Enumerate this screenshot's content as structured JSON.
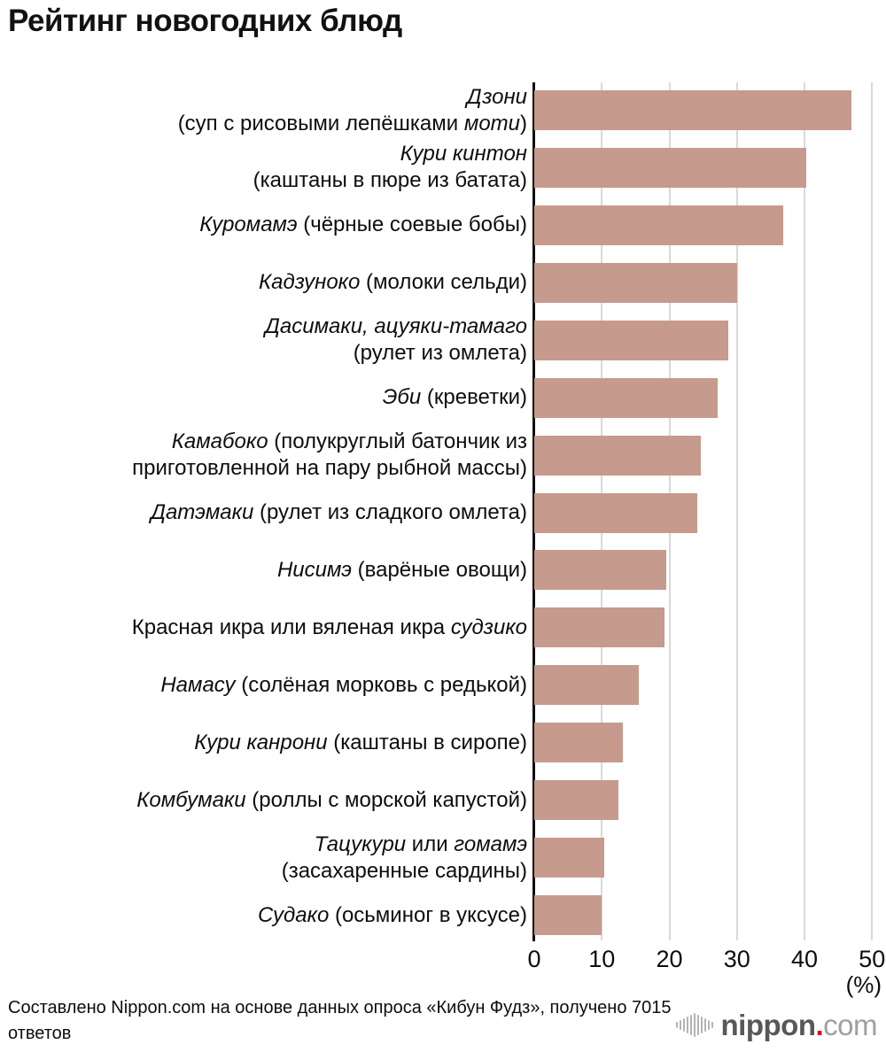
{
  "title": "Рейтинг новогодних блюд",
  "chart_data": {
    "type": "bar",
    "orientation": "horizontal",
    "title": "Рейтинг новогодних блюд",
    "xlabel": "(%)",
    "xlim": [
      0,
      50
    ],
    "x_ticks": [
      0,
      10,
      20,
      30,
      40,
      50
    ],
    "grid": true,
    "bar_color": "#c69a8d",
    "grid_color": "#d9d9d9",
    "categories": [
      "Дзони (суп с рисовыми лепёшками моти)",
      "Кури кинтон (каштаны в пюре из батата)",
      "Куромамэ (чёрные соевые бобы)",
      "Кадзуноко (молоки сельди)",
      "Дасимаки, ацуяки-тамаго (рулет из омлета)",
      "Эби (креветки)",
      "Камабоко (полукруглый батончик из приготовленной на пару рыбной массы)",
      "Датэмаки (рулет из сладкого омлета)",
      "Нисимэ (варёные овощи)",
      "Красная икра или вяленая икра судзико",
      "Намасу (солёная морковь с редькой)",
      "Кури канрони (каштаны в сиропе)",
      "Комбумаки (роллы с морской капустой)",
      "Тацукури или гомамэ (засахаренные сардины)",
      "Судако (осьминог в уксусе)"
    ],
    "values": [
      47,
      40.2,
      36.9,
      30,
      28.7,
      27.2,
      24.6,
      24.1,
      19.6,
      19.3,
      15.5,
      13.1,
      12.4,
      10.3,
      10
    ],
    "items": [
      {
        "value": 47,
        "label_lines": [
          [
            {
              "t": "Дзони",
              "i": true
            }
          ],
          [
            {
              "t": "(суп с рисовыми лепёшками ",
              "i": false
            },
            {
              "t": "моти",
              "i": true
            },
            {
              "t": ")",
              "i": false
            }
          ]
        ]
      },
      {
        "value": 40.2,
        "label_lines": [
          [
            {
              "t": "Кури кинтон",
              "i": true
            }
          ],
          [
            {
              "t": "(каштаны в пюре из батата)",
              "i": false
            }
          ]
        ]
      },
      {
        "value": 36.9,
        "label_lines": [
          [
            {
              "t": "Куромамэ",
              "i": true
            },
            {
              "t": " (чёрные соевые бобы)",
              "i": false
            }
          ]
        ]
      },
      {
        "value": 30,
        "label_lines": [
          [
            {
              "t": "Кадзуноко",
              "i": true
            },
            {
              "t": " (молоки сельди)",
              "i": false
            }
          ]
        ]
      },
      {
        "value": 28.7,
        "label_lines": [
          [
            {
              "t": "Дасимаки, ацуяки-тамаго",
              "i": true
            }
          ],
          [
            {
              "t": "(рулет из омлета)",
              "i": false
            }
          ]
        ]
      },
      {
        "value": 27.2,
        "label_lines": [
          [
            {
              "t": "Эби",
              "i": true
            },
            {
              "t": " (креветки)",
              "i": false
            }
          ]
        ]
      },
      {
        "value": 24.6,
        "label_lines": [
          [
            {
              "t": "Камабоко",
              "i": true
            },
            {
              "t": " (полукруглый батончик из",
              "i": false
            }
          ],
          [
            {
              "t": "приготовленной на пару рыбной массы)",
              "i": false
            }
          ]
        ]
      },
      {
        "value": 24.1,
        "label_lines": [
          [
            {
              "t": "Датэмаки",
              "i": true
            },
            {
              "t": " (рулет из сладкого омлета)",
              "i": false
            }
          ]
        ]
      },
      {
        "value": 19.6,
        "label_lines": [
          [
            {
              "t": "Нисимэ",
              "i": true
            },
            {
              "t": " (варёные овощи)",
              "i": false
            }
          ]
        ]
      },
      {
        "value": 19.3,
        "label_lines": [
          [
            {
              "t": "Красная икра или вяленая икра ",
              "i": false
            },
            {
              "t": "судзико",
              "i": true
            }
          ]
        ]
      },
      {
        "value": 15.5,
        "label_lines": [
          [
            {
              "t": "Намасу",
              "i": true
            },
            {
              "t": " (солёная морковь с редькой)",
              "i": false
            }
          ]
        ]
      },
      {
        "value": 13.1,
        "label_lines": [
          [
            {
              "t": "Кури канрони",
              "i": true
            },
            {
              "t": " (каштаны в сиропе)",
              "i": false
            }
          ]
        ]
      },
      {
        "value": 12.4,
        "label_lines": [
          [
            {
              "t": "Комбумаки",
              "i": true
            },
            {
              "t": " (роллы с морской капустой)",
              "i": false
            }
          ]
        ]
      },
      {
        "value": 10.3,
        "label_lines": [
          [
            {
              "t": "Тацукури",
              "i": true
            },
            {
              "t": " или ",
              "i": false
            },
            {
              "t": "гомамэ",
              "i": true
            }
          ],
          [
            {
              "t": "(засахаренные сардины)",
              "i": false
            }
          ]
        ]
      },
      {
        "value": 10,
        "label_lines": [
          [
            {
              "t": "Судако",
              "i": true
            },
            {
              "t": " (осьминог в уксусе)",
              "i": false
            }
          ]
        ]
      }
    ]
  },
  "footer": {
    "source": "Составлено Nippon.com на основе данных опроса «Кибун Фудз», получено 7015 ответов"
  },
  "logo": {
    "brand": "nippon",
    "dot": ".",
    "tld": "com"
  }
}
